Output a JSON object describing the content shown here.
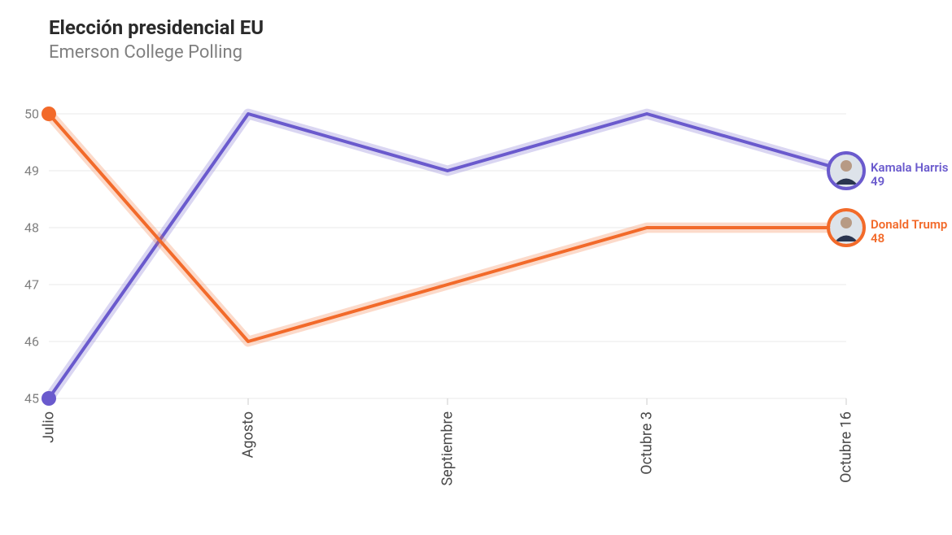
{
  "header": {
    "title": "Elección presidencial EU",
    "subtitle": "Emerson College Polling"
  },
  "chart": {
    "type": "line",
    "background_color": "#ffffff",
    "grid_color": "#e8e8e8",
    "axis_color": "#cccccc",
    "tick_font_color": "#808080",
    "xtick_font_color": "#4a4a4a",
    "title_fontsize": 24,
    "subtitle_fontsize": 22,
    "tick_fontsize": 16,
    "xtick_fontsize": 18,
    "ylim": [
      45,
      50
    ],
    "yticks": [
      45,
      46,
      47,
      48,
      49,
      50
    ],
    "x_categories": [
      "Julio",
      "Agosto",
      "Septiembre",
      "Octubre 3",
      "Octubre 16"
    ],
    "line_width": 4,
    "start_marker_radius": 9,
    "end_marker_radius": 22,
    "glow_opacity": 0.25,
    "series": [
      {
        "id": "harris",
        "label": "Kamala Harris",
        "color": "#6a5acd",
        "values": [
          45,
          50,
          49,
          50,
          49
        ],
        "end_value_label": "49"
      },
      {
        "id": "trump",
        "label": "Donald Trump",
        "color": "#f26a2a",
        "values": [
          50,
          46,
          47,
          48,
          48
        ],
        "end_value_label": "48"
      }
    ]
  }
}
